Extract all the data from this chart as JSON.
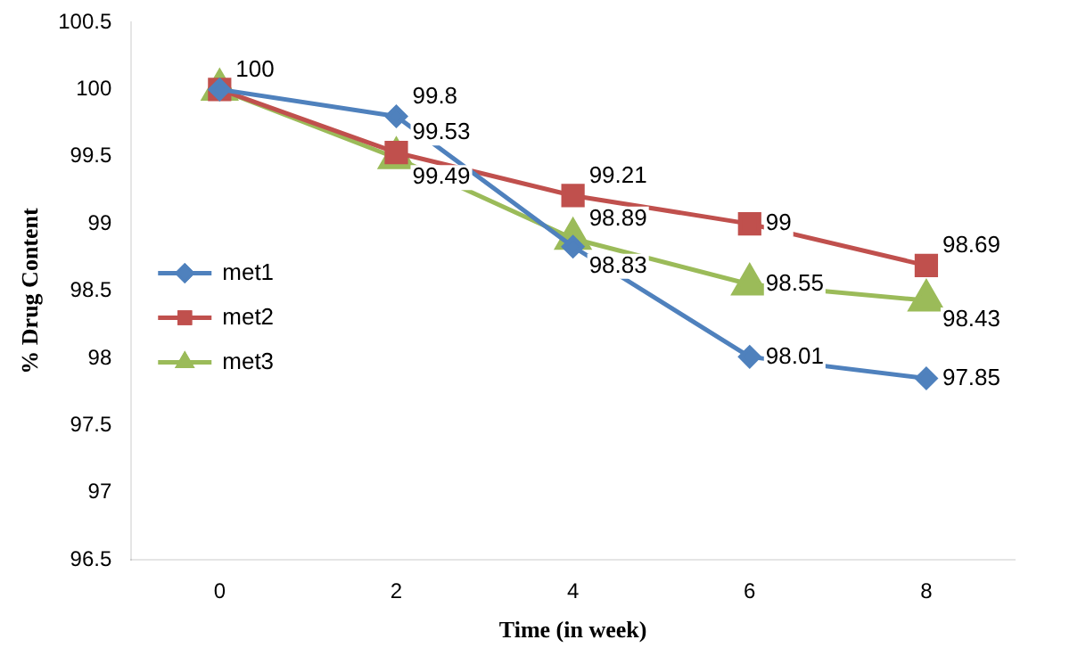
{
  "chart_data": {
    "type": "line",
    "xlabel": "Time (in week)",
    "ylabel": "% Drug Content",
    "categories": [
      "0",
      "2",
      "4",
      "6",
      "8"
    ],
    "series": [
      {
        "name": "met1",
        "color": "#4f81bd",
        "marker": "diamond",
        "values": [
          100,
          99.8,
          98.83,
          98.01,
          97.85
        ],
        "value_labels": [
          "100",
          "99.8",
          "98.83",
          "98.01",
          "97.85"
        ]
      },
      {
        "name": "met2",
        "color": "#c0504d",
        "marker": "square",
        "values": [
          100,
          99.53,
          99.21,
          99,
          98.69
        ],
        "value_labels": [
          null,
          "99.53",
          "99.21",
          "99",
          "98.69"
        ]
      },
      {
        "name": "met3",
        "color": "#9bbb59",
        "marker": "triangle",
        "values": [
          100,
          99.49,
          98.89,
          98.55,
          98.43
        ],
        "value_labels": [
          null,
          "99.49",
          "98.89",
          "98.55",
          "98.43"
        ]
      }
    ],
    "ylim": [
      96.5,
      100.5
    ],
    "yticks": [
      96.5,
      97,
      97.5,
      98,
      98.5,
      99,
      99.5,
      100,
      100.5
    ],
    "grid": false,
    "legend": "left"
  }
}
